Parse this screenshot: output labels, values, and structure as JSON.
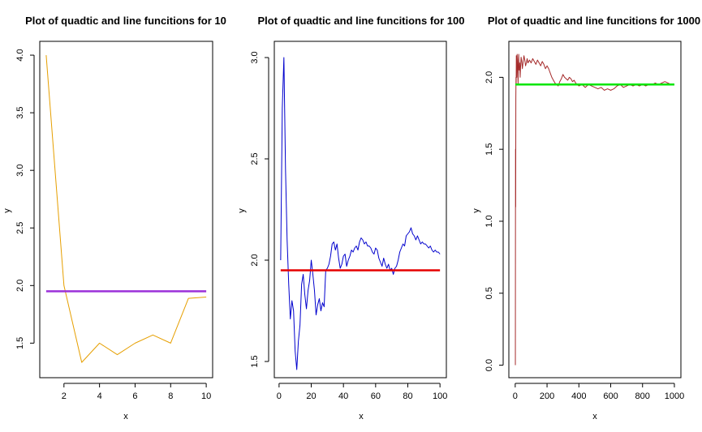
{
  "chart_data": [
    {
      "type": "line",
      "title": "Plot of quadtic and line funcitions for 10",
      "xlabel": "x",
      "ylabel": "y",
      "xlim": [
        0.64,
        10.36
      ],
      "ylim": [
        1.2,
        4.12
      ],
      "xticks": [
        2,
        4,
        6,
        8,
        10
      ],
      "yticks": [
        1.5,
        2.0,
        2.5,
        3.0,
        3.5,
        4.0
      ],
      "xtick_labels": [
        "2",
        "4",
        "6",
        "8",
        "10"
      ],
      "ytick_labels": [
        "1.5",
        "2.0",
        "2.5",
        "3.0",
        "3.5",
        "4.0"
      ],
      "grid": false,
      "series": [
        {
          "color": "#e69f00",
          "x": [
            1,
            2,
            3,
            4,
            5,
            6,
            7,
            8,
            9,
            10
          ],
          "y": [
            4.0,
            2.0,
            1.333,
            1.5,
            1.4,
            1.5,
            1.571,
            1.5,
            1.889,
            1.9
          ]
        }
      ],
      "hlines": [
        {
          "y": 1.95,
          "color": "#9b30d9"
        }
      ]
    },
    {
      "type": "line",
      "title": "Plot of quadtic and line funcitions for 100",
      "xlabel": "x",
      "ylabel": "y",
      "xlim": [
        -2.96,
        103.96
      ],
      "ylim": [
        1.42,
        3.08
      ],
      "xticks": [
        0,
        20,
        40,
        60,
        80,
        100
      ],
      "yticks": [
        1.5,
        2.0,
        2.5,
        3.0
      ],
      "xtick_labels": [
        "0",
        "20",
        "40",
        "60",
        "80",
        "100"
      ],
      "ytick_labels": [
        "1.5",
        "2.0",
        "2.5",
        "3.0"
      ],
      "grid": false,
      "series": [
        {
          "color": "#0000cd",
          "x": [
            1,
            2,
            3,
            4,
            5,
            6,
            7,
            8,
            9,
            10,
            11,
            12,
            13,
            14,
            15,
            16,
            17,
            18,
            19,
            20,
            21,
            22,
            23,
            24,
            25,
            26,
            27,
            28,
            29,
            30,
            31,
            32,
            33,
            34,
            35,
            36,
            37,
            38,
            39,
            40,
            41,
            42,
            43,
            44,
            45,
            46,
            47,
            48,
            49,
            50,
            51,
            52,
            53,
            54,
            55,
            56,
            57,
            58,
            59,
            60,
            61,
            62,
            63,
            64,
            65,
            66,
            67,
            68,
            69,
            70,
            71,
            72,
            73,
            74,
            75,
            76,
            77,
            78,
            79,
            80,
            81,
            82,
            83,
            84,
            85,
            86,
            87,
            88,
            89,
            90,
            91,
            92,
            93,
            94,
            95,
            96,
            97,
            98,
            99,
            100
          ],
          "y": [
            2.0,
            2.75,
            3.0,
            2.45,
            2.1,
            1.88,
            1.71,
            1.8,
            1.75,
            1.55,
            1.46,
            1.6,
            1.68,
            1.88,
            1.93,
            1.83,
            1.76,
            1.85,
            1.9,
            2.0,
            1.93,
            1.85,
            1.73,
            1.78,
            1.81,
            1.75,
            1.79,
            1.77,
            1.95,
            1.96,
            1.98,
            2.02,
            2.08,
            2.09,
            2.05,
            2.08,
            2.01,
            1.96,
            1.98,
            2.02,
            2.03,
            1.97,
            2.0,
            2.02,
            2.05,
            2.04,
            2.06,
            2.07,
            2.05,
            2.09,
            2.11,
            2.1,
            2.08,
            2.09,
            2.07,
            2.07,
            2.06,
            2.04,
            2.03,
            2.06,
            2.05,
            2.01,
            1.99,
            1.97,
            2.01,
            1.98,
            1.96,
            1.98,
            1.95,
            1.96,
            1.93,
            1.96,
            1.97,
            2.0,
            2.04,
            2.06,
            2.08,
            2.07,
            2.12,
            2.13,
            2.14,
            2.16,
            2.13,
            2.12,
            2.1,
            2.12,
            2.1,
            2.08,
            2.09,
            2.08,
            2.08,
            2.07,
            2.06,
            2.07,
            2.05,
            2.04,
            2.05,
            2.04,
            2.04,
            2.03
          ]
        }
      ],
      "hlines": [
        {
          "y": 1.95,
          "color": "#e60000"
        }
      ]
    },
    {
      "type": "line",
      "title": "Plot of quadtic and line funcitions for 1000",
      "xlabel": "x",
      "ylabel": "y",
      "xlim": [
        -39.96,
        1040.96
      ],
      "ylim": [
        -0.087,
        2.25
      ],
      "xticks": [
        0,
        200,
        400,
        600,
        800,
        1000
      ],
      "yticks": [
        0.0,
        0.5,
        1.0,
        1.5,
        2.0
      ],
      "xtick_labels": [
        "0",
        "200",
        "400",
        "600",
        "800",
        "1000"
      ],
      "ytick_labels": [
        "0.0",
        "0.5",
        "1.0",
        "1.5",
        "2.0"
      ],
      "grid": false,
      "series": [
        {
          "color": "#a52a2a",
          "x": [
            1,
            2,
            3,
            4,
            5,
            6,
            7,
            8,
            9,
            10,
            12,
            14,
            16,
            18,
            20,
            22,
            25,
            28,
            31,
            34,
            37,
            40,
            45,
            50,
            55,
            60,
            65,
            70,
            75,
            80,
            90,
            100,
            110,
            120,
            130,
            140,
            150,
            160,
            170,
            180,
            190,
            200,
            210,
            220,
            230,
            240,
            250,
            260,
            270,
            280,
            290,
            300,
            310,
            320,
            330,
            340,
            350,
            360,
            370,
            380,
            390,
            400,
            420,
            440,
            460,
            480,
            500,
            520,
            540,
            560,
            580,
            600,
            620,
            640,
            660,
            680,
            700,
            720,
            740,
            760,
            780,
            800,
            820,
            840,
            860,
            880,
            900,
            920,
            940,
            960,
            980,
            1000
          ],
          "y": [
            0.0,
            1.5,
            1.1,
            1.85,
            2.0,
            1.95,
            2.15,
            2.05,
            2.12,
            2.0,
            2.16,
            2.1,
            2.05,
            1.95,
            2.12,
            2.16,
            2.05,
            2.1,
            2.0,
            2.08,
            2.14,
            2.12,
            2.06,
            2.11,
            2.15,
            2.12,
            2.08,
            2.1,
            2.13,
            2.1,
            2.12,
            2.1,
            2.13,
            2.11,
            2.09,
            2.12,
            2.1,
            2.08,
            2.11,
            2.09,
            2.06,
            2.08,
            2.06,
            2.03,
            2.0,
            1.98,
            1.96,
            1.95,
            1.94,
            1.97,
            1.99,
            2.02,
            2.0,
            1.99,
            1.98,
            2.0,
            1.99,
            1.97,
            1.98,
            1.96,
            1.95,
            1.94,
            1.95,
            1.93,
            1.95,
            1.94,
            1.93,
            1.92,
            1.93,
            1.91,
            1.92,
            1.91,
            1.92,
            1.94,
            1.95,
            1.93,
            1.94,
            1.95,
            1.94,
            1.95,
            1.94,
            1.95,
            1.94,
            1.95,
            1.95,
            1.96,
            1.95,
            1.96,
            1.97,
            1.96,
            1.95,
            1.95
          ]
        }
      ],
      "hlines": [
        {
          "y": 1.95,
          "color": "#00e600"
        }
      ]
    }
  ],
  "colors": {
    "background": "#ffffff",
    "axis": "#000000"
  }
}
